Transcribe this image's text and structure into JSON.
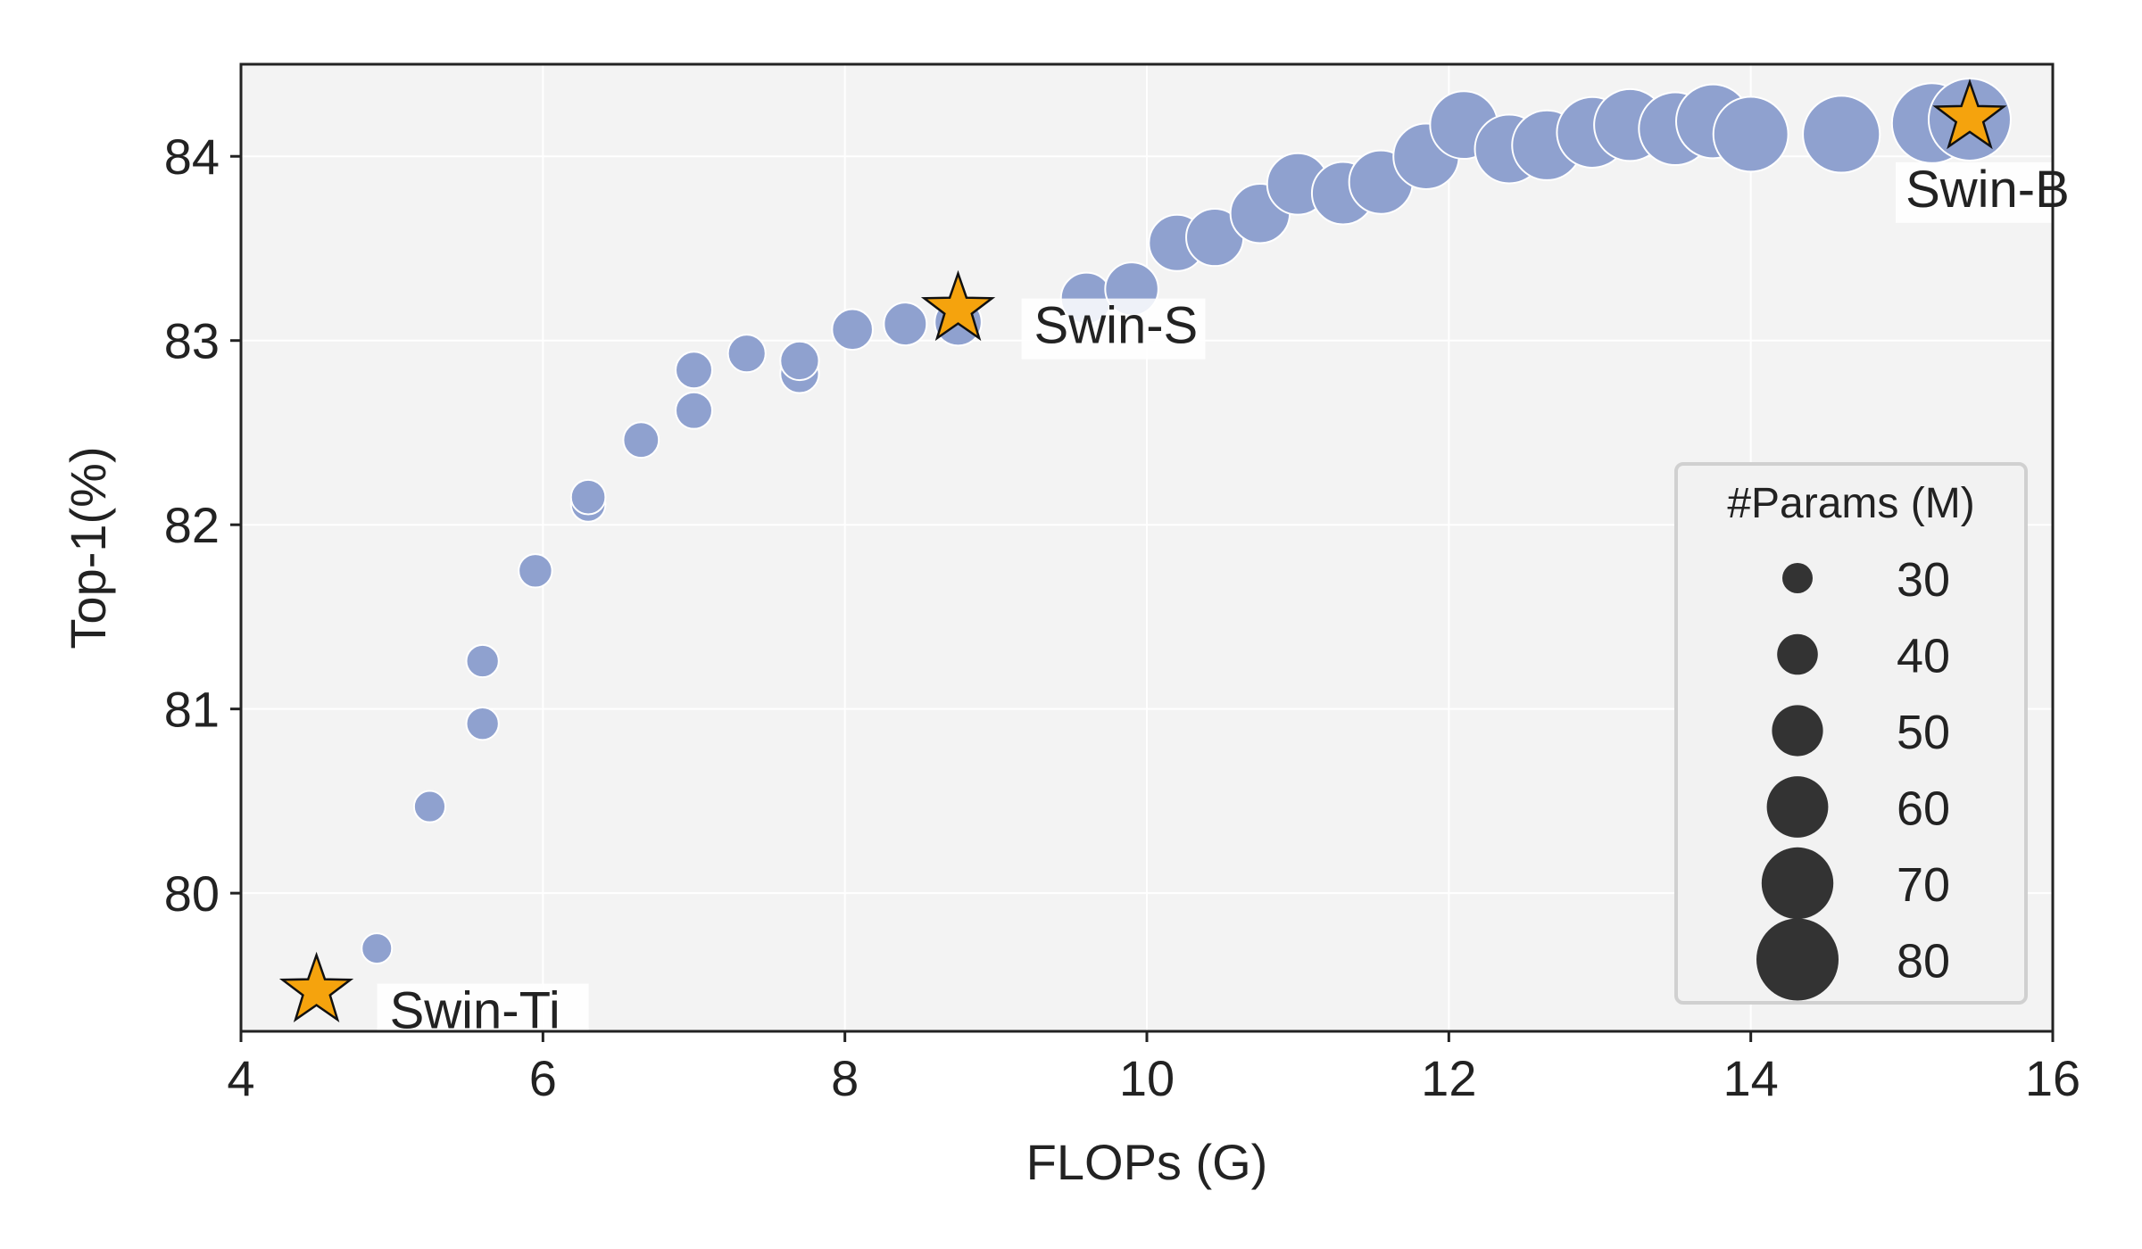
{
  "chart_data": {
    "type": "scatter",
    "title": "",
    "xlabel": "FLOPs (G)",
    "ylabel": "Top-1(%)",
    "xlim": [
      4,
      16
    ],
    "ylim": [
      79.25,
      84.5
    ],
    "xticks": [
      4,
      6,
      8,
      10,
      12,
      14,
      16
    ],
    "yticks": [
      80,
      81,
      82,
      83,
      84
    ],
    "grid": true,
    "background": "#f3f3f3",
    "point_color": "#8fa1cf",
    "star_color": "#f5a30d",
    "series": [
      {
        "values": [
          {
            "x": 4.9,
            "y": 79.7,
            "params": 30
          },
          {
            "x": 5.25,
            "y": 80.47,
            "params": 31
          },
          {
            "x": 5.6,
            "y": 80.92,
            "params": 32
          },
          {
            "x": 5.6,
            "y": 81.26,
            "params": 32
          },
          {
            "x": 5.95,
            "y": 81.75,
            "params": 33
          },
          {
            "x": 6.3,
            "y": 82.11,
            "params": 34
          },
          {
            "x": 6.3,
            "y": 82.15,
            "params": 34
          },
          {
            "x": 6.65,
            "y": 82.46,
            "params": 35
          },
          {
            "x": 7.0,
            "y": 82.62,
            "params": 36
          },
          {
            "x": 7.0,
            "y": 82.84,
            "params": 36
          },
          {
            "x": 7.35,
            "y": 82.93,
            "params": 37
          },
          {
            "x": 7.7,
            "y": 82.82,
            "params": 38
          },
          {
            "x": 7.7,
            "y": 82.89,
            "params": 38
          },
          {
            "x": 8.05,
            "y": 83.06,
            "params": 40
          },
          {
            "x": 8.4,
            "y": 83.09,
            "params": 42
          },
          {
            "x": 8.75,
            "y": 83.1,
            "params": 46
          },
          {
            "x": 9.6,
            "y": 83.23,
            "params": 50
          },
          {
            "x": 9.9,
            "y": 83.28,
            "params": 52
          },
          {
            "x": 10.2,
            "y": 83.53,
            "params": 55
          },
          {
            "x": 10.45,
            "y": 83.56,
            "params": 56
          },
          {
            "x": 10.75,
            "y": 83.69,
            "params": 58
          },
          {
            "x": 11.0,
            "y": 83.85,
            "params": 60
          },
          {
            "x": 11.3,
            "y": 83.8,
            "params": 61
          },
          {
            "x": 11.55,
            "y": 83.86,
            "params": 62
          },
          {
            "x": 11.85,
            "y": 84.0,
            "params": 64
          },
          {
            "x": 12.1,
            "y": 84.17,
            "params": 66
          },
          {
            "x": 12.4,
            "y": 84.04,
            "params": 67
          },
          {
            "x": 12.65,
            "y": 84.06,
            "params": 68
          },
          {
            "x": 12.95,
            "y": 84.13,
            "params": 69
          },
          {
            "x": 13.2,
            "y": 84.17,
            "params": 70
          },
          {
            "x": 13.5,
            "y": 84.15,
            "params": 71
          },
          {
            "x": 13.75,
            "y": 84.19,
            "params": 72
          },
          {
            "x": 14.0,
            "y": 84.12,
            "params": 73
          },
          {
            "x": 14.6,
            "y": 84.12,
            "params": 75
          },
          {
            "x": 15.2,
            "y": 84.18,
            "params": 78
          },
          {
            "x": 15.45,
            "y": 84.2,
            "params": 80
          }
        ]
      }
    ],
    "annotations": [
      {
        "label": "Swin-Ti",
        "x": 4.5,
        "y": 79.47
      },
      {
        "label": "Swin-S",
        "x": 8.75,
        "y": 83.17
      },
      {
        "label": "Swin-B",
        "x": 15.45,
        "y": 84.21
      }
    ],
    "legend": {
      "title": "#Params (M)",
      "position": "lower-right",
      "entries": [
        30,
        40,
        50,
        60,
        70,
        80
      ]
    }
  }
}
